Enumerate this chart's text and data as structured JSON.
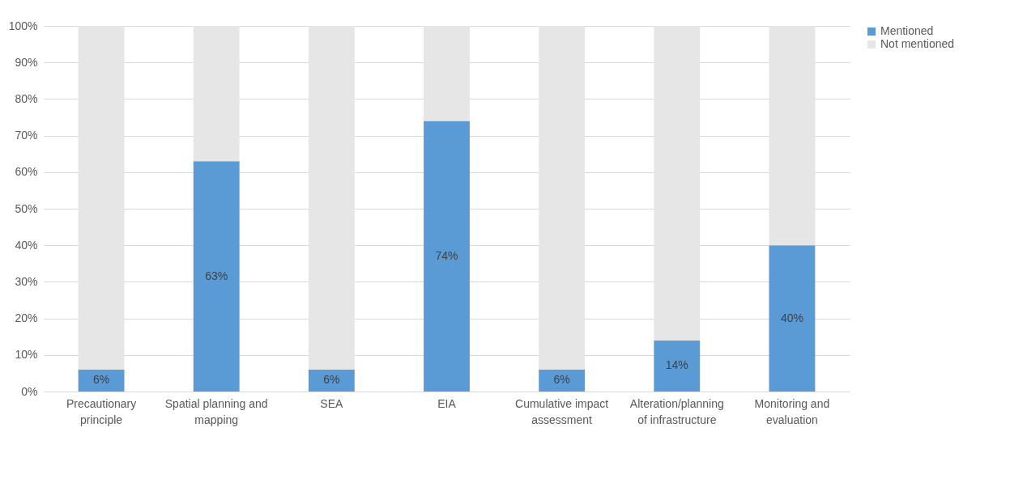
{
  "chart_data": {
    "type": "bar",
    "stacked": true,
    "categories": [
      "Precautionary principle",
      "Spatial planning and mapping",
      "SEA",
      "EIA",
      "Cumulative impact assessment",
      "Alteration/planning of infrastructure",
      "Monitoring and evaluation"
    ],
    "series": [
      {
        "name": "Mentioned",
        "color": "#5b9bd5",
        "values": [
          6,
          63,
          6,
          74,
          6,
          14,
          40
        ],
        "value_labels": [
          "6%",
          "63%",
          "6%",
          "74%",
          "6%",
          "14%",
          "40%"
        ]
      },
      {
        "name": "Not mentioned",
        "color": "#e7e6e6",
        "values": [
          94,
          37,
          94,
          26,
          94,
          86,
          60
        ]
      }
    ],
    "ylim": [
      0,
      100
    ],
    "yticks": [
      {
        "value": 0,
        "label": "0%"
      },
      {
        "value": 10,
        "label": "10%"
      },
      {
        "value": 20,
        "label": "20%"
      },
      {
        "value": 30,
        "label": "30%"
      },
      {
        "value": 40,
        "label": "40%"
      },
      {
        "value": 50,
        "label": "50%"
      },
      {
        "value": 60,
        "label": "60%"
      },
      {
        "value": 70,
        "label": "70%"
      },
      {
        "value": 80,
        "label": "80%"
      },
      {
        "value": 90,
        "label": "90%"
      },
      {
        "value": 100,
        "label": "100%"
      }
    ],
    "grid": "y",
    "legend": "right"
  }
}
